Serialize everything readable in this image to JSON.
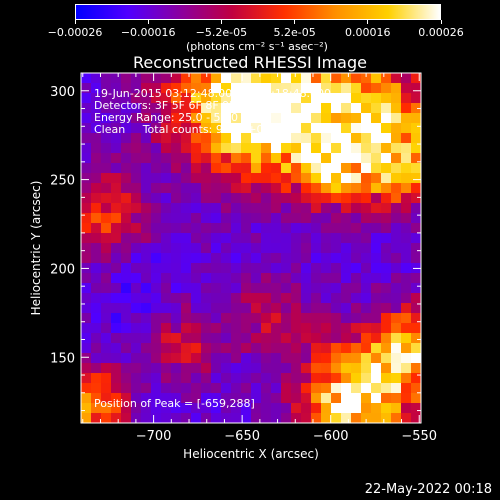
{
  "colorbar": {
    "ticks": [
      "-0.00026",
      "-0.00016",
      "-5.2e-05",
      "5.2e-05",
      "0.00016",
      "0.00026"
    ],
    "unit_label": "(photons cm⁻² s⁻¹ asec⁻²)",
    "colors": [
      "#0000ff",
      "#5000ff",
      "#8a00a0",
      "#c00040",
      "#ff3000",
      "#ff9000",
      "#ffd000",
      "#ffffff"
    ]
  },
  "title": "Reconstructed RHESSI Image",
  "annotations": {
    "line1": "19-Jun-2015 03:12:48.000 to 03:18:48.000",
    "line2": "Detectors: 3F 5F 6F 8F 9F, Att 0",
    "line3": "Energy Range: 25.0 - 50.0 keV",
    "line4": "Clean     Total counts: 9.41E+03",
    "peak": "Position of Peak = [-659,288]"
  },
  "footer_timestamp": "22-May-2022 00:18",
  "chart_data": {
    "type": "heatmap",
    "title": "Reconstructed RHESSI Image",
    "xlabel": "Heliocentric X (arcsec)",
    "ylabel": "Heliocentric Y (arcsec)",
    "xlim": [
      -741,
      -549
    ],
    "ylim": [
      113,
      310
    ],
    "xticks": [
      -700,
      -650,
      -600,
      -550
    ],
    "xtick_labels": [
      "−700",
      "−650",
      "−600",
      "−550"
    ],
    "yticks": [
      150,
      200,
      250,
      300
    ],
    "ytick_labels": [
      "150",
      "200",
      "250",
      "300"
    ],
    "colorbar_range": [
      -0.00026,
      0.00026
    ],
    "peak_position": [
      -659,
      288
    ]
  }
}
